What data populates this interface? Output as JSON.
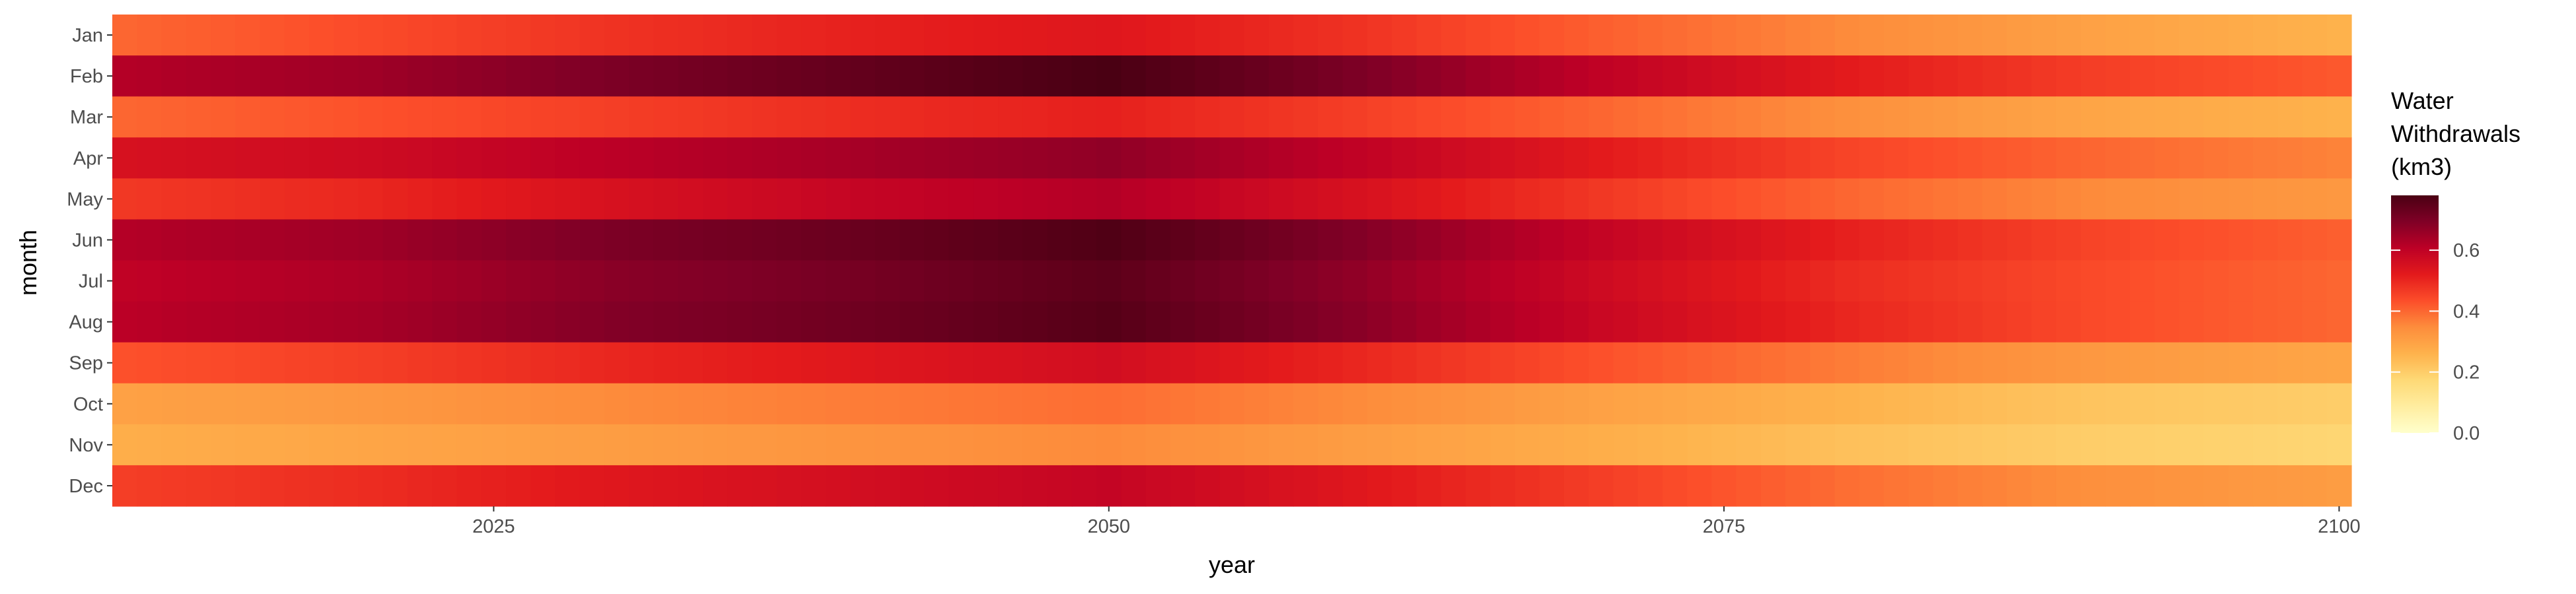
{
  "chart_data": {
    "type": "heatmap",
    "title": "",
    "xlabel": "year",
    "ylabel": "month",
    "xlim": [
      2010,
      2100
    ],
    "x_ticks": [
      "2025",
      "2050",
      "2075",
      "2100"
    ],
    "months": [
      "Jan",
      "Feb",
      "Mar",
      "Apr",
      "May",
      "Jun",
      "Jul",
      "Aug",
      "Sep",
      "Oct",
      "Nov",
      "Dec"
    ],
    "years_start": 2010,
    "years_end": 2100,
    "legend": {
      "title_lines": [
        "Water",
        "Withdrawals",
        "(km3)"
      ],
      "labels": [
        "0.0",
        "0.2",
        "0.4",
        "0.6"
      ],
      "range": [
        0,
        0.78
      ],
      "colors": [
        "#ffffcc",
        "#ffeda0",
        "#fed976",
        "#feb24c",
        "#fd8d3c",
        "#fc4e2a",
        "#e31a1c",
        "#bd0026",
        "#800026",
        "#4a0013"
      ]
    },
    "series": [
      {
        "name": "Jan",
        "values": {
          "2010": 0.4,
          "2020": 0.44,
          "2030": 0.48,
          "2040": 0.51,
          "2050": 0.53,
          "2060": 0.48,
          "2070": 0.41,
          "2080": 0.35,
          "2090": 0.3,
          "2100": 0.26
        }
      },
      {
        "name": "Feb",
        "values": {
          "2010": 0.62,
          "2020": 0.65,
          "2030": 0.7,
          "2040": 0.74,
          "2050": 0.78,
          "2060": 0.7,
          "2070": 0.6,
          "2080": 0.52,
          "2090": 0.46,
          "2100": 0.42
        }
      },
      {
        "name": "Mar",
        "values": {
          "2010": 0.4,
          "2020": 0.43,
          "2030": 0.46,
          "2040": 0.49,
          "2050": 0.51,
          "2060": 0.46,
          "2070": 0.4,
          "2080": 0.34,
          "2090": 0.29,
          "2100": 0.26
        }
      },
      {
        "name": "Apr",
        "values": {
          "2010": 0.55,
          "2020": 0.57,
          "2030": 0.61,
          "2040": 0.64,
          "2050": 0.67,
          "2060": 0.6,
          "2070": 0.52,
          "2080": 0.45,
          "2090": 0.4,
          "2100": 0.36
        }
      },
      {
        "name": "May",
        "values": {
          "2010": 0.47,
          "2020": 0.5,
          "2030": 0.55,
          "2040": 0.59,
          "2050": 0.62,
          "2060": 0.55,
          "2070": 0.47,
          "2080": 0.4,
          "2090": 0.35,
          "2100": 0.32
        }
      },
      {
        "name": "Jun",
        "values": {
          "2010": 0.62,
          "2020": 0.65,
          "2030": 0.7,
          "2040": 0.73,
          "2050": 0.77,
          "2060": 0.69,
          "2070": 0.59,
          "2080": 0.51,
          "2090": 0.45,
          "2100": 0.41
        }
      },
      {
        "name": "Jul",
        "values": {
          "2010": 0.6,
          "2020": 0.63,
          "2030": 0.68,
          "2040": 0.71,
          "2050": 0.75,
          "2060": 0.67,
          "2070": 0.57,
          "2080": 0.49,
          "2090": 0.44,
          "2100": 0.4
        }
      },
      {
        "name": "Aug",
        "values": {
          "2010": 0.61,
          "2020": 0.64,
          "2030": 0.69,
          "2040": 0.72,
          "2050": 0.76,
          "2060": 0.68,
          "2070": 0.58,
          "2080": 0.5,
          "2090": 0.44,
          "2100": 0.4
        }
      },
      {
        "name": "Sep",
        "values": {
          "2010": 0.43,
          "2020": 0.46,
          "2030": 0.5,
          "2040": 0.53,
          "2050": 0.56,
          "2060": 0.5,
          "2070": 0.43,
          "2080": 0.37,
          "2090": 0.32,
          "2100": 0.29
        }
      },
      {
        "name": "Oct",
        "values": {
          "2010": 0.3,
          "2020": 0.32,
          "2030": 0.35,
          "2040": 0.37,
          "2050": 0.39,
          "2060": 0.35,
          "2070": 0.3,
          "2080": 0.26,
          "2090": 0.22,
          "2100": 0.2
        }
      },
      {
        "name": "Nov",
        "values": {
          "2010": 0.27,
          "2020": 0.29,
          "2030": 0.31,
          "2040": 0.33,
          "2050": 0.35,
          "2060": 0.31,
          "2070": 0.27,
          "2080": 0.23,
          "2090": 0.2,
          "2100": 0.18
        }
      },
      {
        "name": "Dec",
        "values": {
          "2010": 0.46,
          "2020": 0.49,
          "2030": 0.53,
          "2040": 0.56,
          "2050": 0.59,
          "2060": 0.53,
          "2070": 0.46,
          "2080": 0.39,
          "2090": 0.34,
          "2100": 0.31
        }
      }
    ]
  }
}
